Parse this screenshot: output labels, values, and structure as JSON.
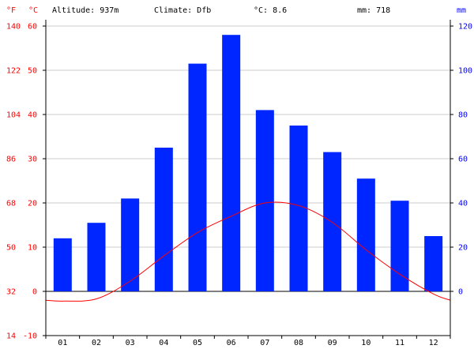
{
  "header": {
    "unit_f": "°F",
    "unit_c": "°C",
    "altitude": "Altitude: 937m",
    "climate": "Climate: Dfb",
    "temp": "°C: 8.6",
    "precip": "mm: 718",
    "unit_mm": "mm"
  },
  "chart_data": {
    "type": "bar+line",
    "categories": [
      "01",
      "02",
      "03",
      "04",
      "05",
      "06",
      "07",
      "08",
      "09",
      "10",
      "11",
      "12"
    ],
    "precip_mm": [
      24,
      31,
      42,
      65,
      103,
      116,
      82,
      75,
      63,
      51,
      41,
      25
    ],
    "temp_c": [
      -2.2,
      -1.7,
      2.3,
      8.0,
      13.3,
      17.0,
      20.0,
      19.4,
      15.6,
      9.4,
      3.9,
      -0.6
    ],
    "temp_c_edges": {
      "start": -2.0,
      "end": -2.0
    },
    "left_axis_c": {
      "ylim": [
        -10,
        60
      ],
      "ticks": [
        -10,
        0,
        10,
        20,
        30,
        40,
        50,
        60
      ]
    },
    "left_axis_f": {
      "ticks": [
        14,
        32,
        50,
        68,
        86,
        104,
        122,
        140
      ]
    },
    "right_axis_mm": {
      "ylim": [
        -20,
        120
      ],
      "ticks": [
        0,
        20,
        40,
        60,
        80,
        100,
        120
      ]
    },
    "grid": true,
    "colors": {
      "bars": "#0026ff",
      "line": "#ff0000",
      "left_axis": "#ff0000",
      "right_axis": "#0000ff",
      "grid": "#cccccc"
    }
  }
}
